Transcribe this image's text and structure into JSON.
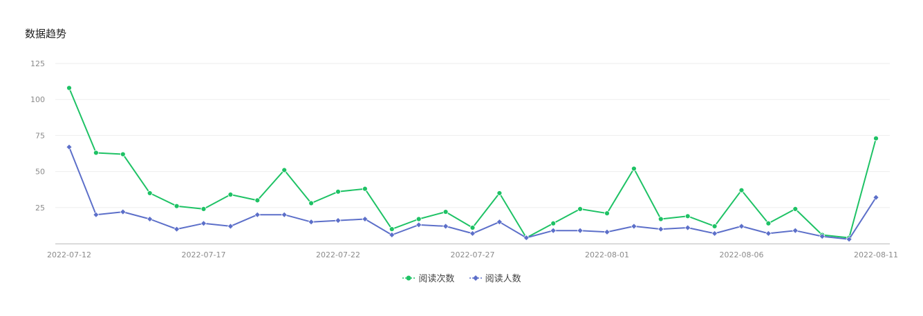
{
  "title": "数据趋势",
  "chart_data": {
    "type": "line",
    "x": [
      "2022-07-12",
      "2022-07-13",
      "2022-07-14",
      "2022-07-15",
      "2022-07-16",
      "2022-07-17",
      "2022-07-18",
      "2022-07-19",
      "2022-07-20",
      "2022-07-21",
      "2022-07-22",
      "2022-07-23",
      "2022-07-24",
      "2022-07-25",
      "2022-07-26",
      "2022-07-27",
      "2022-07-28",
      "2022-07-29",
      "2022-07-30",
      "2022-07-31",
      "2022-08-01",
      "2022-08-02",
      "2022-08-03",
      "2022-08-04",
      "2022-08-05",
      "2022-08-06",
      "2022-08-07",
      "2022-08-08",
      "2022-08-09",
      "2022-08-10",
      "2022-08-11"
    ],
    "x_tick_labels": [
      "2022-07-12",
      "2022-07-17",
      "2022-07-22",
      "2022-07-27",
      "2022-08-01",
      "2022-08-06",
      "2022-08-11"
    ],
    "series": [
      {
        "name": "阅读次数",
        "color": "#1ec265",
        "marker": "circle",
        "values": [
          108,
          63,
          62,
          35,
          26,
          24,
          34,
          30,
          51,
          28,
          36,
          38,
          10,
          17,
          22,
          11,
          35,
          4,
          14,
          24,
          21,
          52,
          17,
          19,
          12,
          37,
          14,
          24,
          6,
          4,
          73
        ]
      },
      {
        "name": "阅读人数",
        "color": "#5c6fc9",
        "marker": "diamond",
        "values": [
          67,
          20,
          22,
          17,
          10,
          14,
          12,
          20,
          20,
          15,
          16,
          17,
          6,
          13,
          12,
          7,
          15,
          4,
          9,
          9,
          8,
          12,
          10,
          11,
          7,
          12,
          7,
          9,
          5,
          3,
          32
        ]
      }
    ],
    "yticks": [
      25,
      50,
      75,
      100,
      125
    ],
    "ylim": [
      0,
      125
    ],
    "grid": true,
    "legend_position": "bottom-center"
  }
}
